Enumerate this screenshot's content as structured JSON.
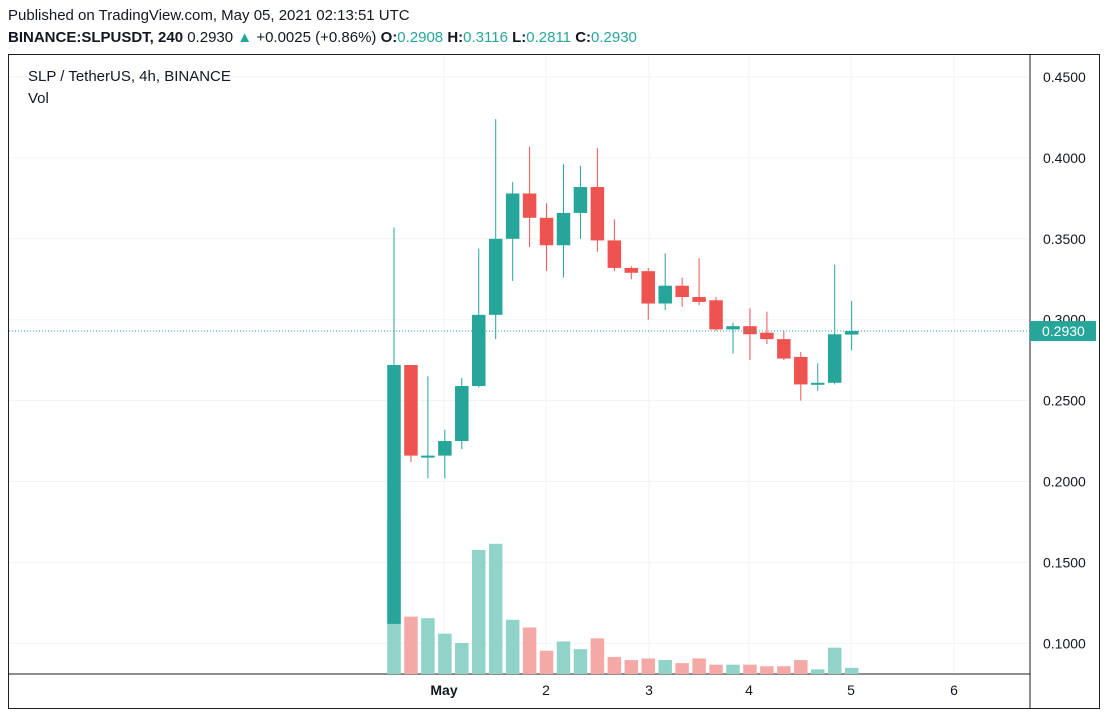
{
  "header": {
    "published": "Published on TradingView.com, May 05, 2021 02:13:51 UTC",
    "symbol": "BINANCE:SLPUSDT, 240",
    "last": "0.2930",
    "change_arrow": "▲",
    "change": "+0.0025 (+0.86%)",
    "o_label": "O:",
    "o_value": "0.2908",
    "h_label": "H:",
    "h_value": "0.3116",
    "l_label": "L:",
    "l_value": "0.2811",
    "c_label": "C:",
    "c_value": "0.2930"
  },
  "legend": {
    "title": "SLP / TetherUS, 4h, BINANCE",
    "volume": "Vol"
  },
  "colors": {
    "up": "#26a69a",
    "down": "#ef5350",
    "vol_up": "#8fd3c9",
    "vol_down": "#f5a9a7",
    "grid": "#f0f3fa"
  },
  "chart_data": {
    "type": "candlestick",
    "title": "SLP / TetherUS, 4h, BINANCE",
    "y_ticks": [
      "0.4500",
      "0.4000",
      "0.3500",
      "0.3000",
      "0.2500",
      "0.2000",
      "0.1500",
      "0.1000"
    ],
    "ylim": [
      0.08,
      0.465
    ],
    "x_ticks": [
      "May",
      "2",
      "3",
      "4",
      "5",
      "6"
    ],
    "last_price_label": "0.2930",
    "last_price": 0.293,
    "grid": true,
    "candles": [
      {
        "o": 0.112,
        "h": 0.357,
        "l": 0.112,
        "c": 0.272,
        "v": 1.0
      },
      {
        "o": 0.272,
        "h": 0.272,
        "l": 0.212,
        "c": 0.216,
        "v": 0.37
      },
      {
        "o": 0.216,
        "h": 0.265,
        "l": 0.202,
        "c": 0.216,
        "v": 0.36
      },
      {
        "o": 0.216,
        "h": 0.232,
        "l": 0.202,
        "c": 0.225,
        "v": 0.26
      },
      {
        "o": 0.225,
        "h": 0.264,
        "l": 0.22,
        "c": 0.259,
        "v": 0.2
      },
      {
        "o": 0.259,
        "h": 0.344,
        "l": 0.258,
        "c": 0.303,
        "v": 0.8
      },
      {
        "o": 0.303,
        "h": 0.424,
        "l": 0.288,
        "c": 0.35,
        "v": 0.84
      },
      {
        "o": 0.35,
        "h": 0.385,
        "l": 0.324,
        "c": 0.378,
        "v": 0.35
      },
      {
        "o": 0.378,
        "h": 0.407,
        "l": 0.345,
        "c": 0.363,
        "v": 0.3
      },
      {
        "o": 0.363,
        "h": 0.372,
        "l": 0.33,
        "c": 0.346,
        "v": 0.15
      },
      {
        "o": 0.346,
        "h": 0.396,
        "l": 0.326,
        "c": 0.366,
        "v": 0.21
      },
      {
        "o": 0.366,
        "h": 0.395,
        "l": 0.35,
        "c": 0.382,
        "v": 0.16
      },
      {
        "o": 0.382,
        "h": 0.406,
        "l": 0.342,
        "c": 0.349,
        "v": 0.23
      },
      {
        "o": 0.349,
        "h": 0.362,
        "l": 0.33,
        "c": 0.332,
        "v": 0.11
      },
      {
        "o": 0.332,
        "h": 0.333,
        "l": 0.325,
        "c": 0.329,
        "v": 0.09
      },
      {
        "o": 0.33,
        "h": 0.332,
        "l": 0.3,
        "c": 0.31,
        "v": 0.1
      },
      {
        "o": 0.31,
        "h": 0.341,
        "l": 0.306,
        "c": 0.321,
        "v": 0.09
      },
      {
        "o": 0.321,
        "h": 0.326,
        "l": 0.308,
        "c": 0.314,
        "v": 0.07
      },
      {
        "o": 0.314,
        "h": 0.338,
        "l": 0.309,
        "c": 0.311,
        "v": 0.1
      },
      {
        "o": 0.312,
        "h": 0.314,
        "l": 0.293,
        "c": 0.294,
        "v": 0.06
      },
      {
        "o": 0.294,
        "h": 0.298,
        "l": 0.279,
        "c": 0.296,
        "v": 0.06
      },
      {
        "o": 0.296,
        "h": 0.307,
        "l": 0.275,
        "c": 0.291,
        "v": 0.06
      },
      {
        "o": 0.292,
        "h": 0.305,
        "l": 0.285,
        "c": 0.288,
        "v": 0.05
      },
      {
        "o": 0.288,
        "h": 0.293,
        "l": 0.275,
        "c": 0.276,
        "v": 0.05
      },
      {
        "o": 0.277,
        "h": 0.28,
        "l": 0.25,
        "c": 0.26,
        "v": 0.09
      },
      {
        "o": 0.261,
        "h": 0.273,
        "l": 0.256,
        "c": 0.261,
        "v": 0.03
      },
      {
        "o": 0.261,
        "h": 0.334,
        "l": 0.26,
        "c": 0.291,
        "v": 0.17
      },
      {
        "o": 0.2908,
        "h": 0.3116,
        "l": 0.2811,
        "c": 0.293,
        "v": 0.04
      }
    ]
  }
}
